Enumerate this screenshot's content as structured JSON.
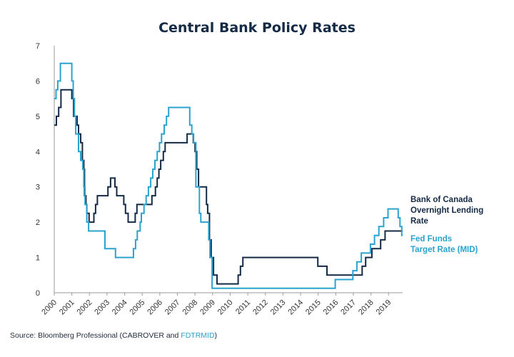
{
  "chart_data": {
    "type": "line",
    "title": "Central Bank Policy Rates",
    "xlabel": "",
    "ylabel": "",
    "ylim": [
      0,
      7
    ],
    "xlim": [
      2000,
      2019.8
    ],
    "yticks": [
      0,
      1,
      2,
      3,
      4,
      5,
      6,
      7
    ],
    "xticks": [
      "2000",
      "2001",
      "2002",
      "2003",
      "2004",
      "2005",
      "2006",
      "2007",
      "2008",
      "2009",
      "2010",
      "2011",
      "2012",
      "2013",
      "2014",
      "2015",
      "2016",
      "2017",
      "2018",
      "2019"
    ],
    "legend_position": "right",
    "series": [
      {
        "name": "Bank of Canada Overnight Lending Rate",
        "legend_lines": [
          "Bank of Canada",
          "Overnight Lending",
          "Rate"
        ],
        "color": "#142a45",
        "points": [
          [
            2000.0,
            4.75
          ],
          [
            2000.12,
            5.0
          ],
          [
            2000.25,
            5.25
          ],
          [
            2000.38,
            5.75
          ],
          [
            2000.95,
            5.75
          ],
          [
            2001.0,
            5.5
          ],
          [
            2001.1,
            5.0
          ],
          [
            2001.3,
            4.75
          ],
          [
            2001.38,
            4.5
          ],
          [
            2001.5,
            4.25
          ],
          [
            2001.6,
            3.75
          ],
          [
            2001.68,
            3.5
          ],
          [
            2001.72,
            2.75
          ],
          [
            2001.8,
            2.5
          ],
          [
            2001.85,
            2.25
          ],
          [
            2001.98,
            2.0
          ],
          [
            2002.25,
            2.25
          ],
          [
            2002.35,
            2.5
          ],
          [
            2002.45,
            2.75
          ],
          [
            2003.05,
            3.0
          ],
          [
            2003.2,
            3.25
          ],
          [
            2003.45,
            3.0
          ],
          [
            2003.55,
            2.75
          ],
          [
            2003.95,
            2.5
          ],
          [
            2004.05,
            2.25
          ],
          [
            2004.2,
            2.0
          ],
          [
            2004.6,
            2.25
          ],
          [
            2004.7,
            2.5
          ],
          [
            2005.45,
            2.5
          ],
          [
            2005.55,
            2.75
          ],
          [
            2005.75,
            3.0
          ],
          [
            2005.85,
            3.25
          ],
          [
            2005.95,
            3.5
          ],
          [
            2006.05,
            3.75
          ],
          [
            2006.2,
            4.0
          ],
          [
            2006.3,
            4.25
          ],
          [
            2007.55,
            4.5
          ],
          [
            2007.9,
            4.25
          ],
          [
            2008.0,
            4.0
          ],
          [
            2008.1,
            3.5
          ],
          [
            2008.2,
            3.0
          ],
          [
            2008.65,
            2.5
          ],
          [
            2008.72,
            2.25
          ],
          [
            2008.82,
            1.5
          ],
          [
            2008.92,
            1.0
          ],
          [
            2009.05,
            0.5
          ],
          [
            2009.25,
            0.25
          ],
          [
            2010.45,
            0.5
          ],
          [
            2010.58,
            0.75
          ],
          [
            2010.72,
            1.0
          ],
          [
            2014.98,
            0.75
          ],
          [
            2015.5,
            0.5
          ],
          [
            2017.5,
            0.75
          ],
          [
            2017.7,
            1.0
          ],
          [
            2018.05,
            1.25
          ],
          [
            2018.55,
            1.5
          ],
          [
            2018.8,
            1.75
          ],
          [
            2019.8,
            1.75
          ]
        ]
      },
      {
        "name": "Fed Funds Target Rate (MID)",
        "legend_lines": [
          "Fed Funds",
          "Target Rate (MID)"
        ],
        "color": "#2aa3cf",
        "points": [
          [
            2000.0,
            5.5
          ],
          [
            2000.1,
            5.75
          ],
          [
            2000.2,
            6.0
          ],
          [
            2000.35,
            6.5
          ],
          [
            2001.0,
            6.0
          ],
          [
            2001.08,
            5.5
          ],
          [
            2001.15,
            5.0
          ],
          [
            2001.22,
            4.5
          ],
          [
            2001.38,
            4.0
          ],
          [
            2001.5,
            3.75
          ],
          [
            2001.62,
            3.5
          ],
          [
            2001.68,
            3.0
          ],
          [
            2001.75,
            2.5
          ],
          [
            2001.85,
            2.0
          ],
          [
            2001.95,
            1.75
          ],
          [
            2002.88,
            1.25
          ],
          [
            2003.48,
            1.0
          ],
          [
            2004.5,
            1.25
          ],
          [
            2004.62,
            1.5
          ],
          [
            2004.72,
            1.75
          ],
          [
            2004.88,
            2.0
          ],
          [
            2004.95,
            2.25
          ],
          [
            2005.1,
            2.5
          ],
          [
            2005.22,
            2.75
          ],
          [
            2005.35,
            3.0
          ],
          [
            2005.48,
            3.25
          ],
          [
            2005.6,
            3.5
          ],
          [
            2005.72,
            3.75
          ],
          [
            2005.85,
            4.0
          ],
          [
            2005.98,
            4.25
          ],
          [
            2006.1,
            4.5
          ],
          [
            2006.25,
            4.75
          ],
          [
            2006.38,
            5.0
          ],
          [
            2006.5,
            5.25
          ],
          [
            2007.7,
            4.75
          ],
          [
            2007.82,
            4.5
          ],
          [
            2007.92,
            4.25
          ],
          [
            2008.05,
            3.0
          ],
          [
            2008.25,
            2.25
          ],
          [
            2008.33,
            2.0
          ],
          [
            2008.78,
            1.5
          ],
          [
            2008.85,
            1.0
          ],
          [
            2008.97,
            0.125
          ],
          [
            2015.97,
            0.375
          ],
          [
            2016.97,
            0.625
          ],
          [
            2017.2,
            0.875
          ],
          [
            2017.45,
            1.125
          ],
          [
            2017.97,
            1.375
          ],
          [
            2018.2,
            1.625
          ],
          [
            2018.45,
            1.875
          ],
          [
            2018.72,
            2.125
          ],
          [
            2018.97,
            2.375
          ],
          [
            2019.55,
            2.125
          ],
          [
            2019.65,
            1.875
          ],
          [
            2019.75,
            1.625
          ],
          [
            2019.8,
            1.625
          ]
        ]
      }
    ],
    "source_prefix": "Source: Bloomberg Professional (CABROVER and ",
    "source_highlight": "FDTRMID",
    "source_suffix": ")"
  }
}
